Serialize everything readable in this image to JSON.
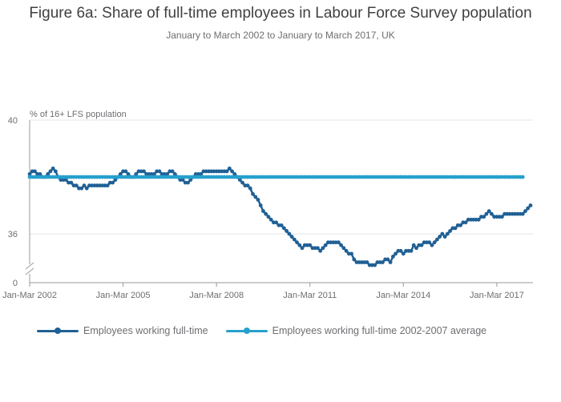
{
  "colors": {
    "primary": "#206095",
    "average": "#27a0cc",
    "text": "#414042",
    "grid": "#e6e6e6"
  },
  "chart_data": {
    "type": "line",
    "title": "Figure 6a: Share of full-time employees in Labour Force Survey population",
    "subtitle": "January to March 2002 to January to March 2017, UK",
    "ylabel": "% of 16+ LFS population",
    "xlabel": "",
    "y_axis_break": true,
    "y_ticks": [
      "40",
      "36",
      "0"
    ],
    "x_tick_labels": [
      "Jan-Mar 2002",
      "Jan-Mar 2005",
      "Jan-Mar 2008",
      "Jan-Mar 2011",
      "Jan-Mar 2014",
      "Jan-Mar 2017"
    ],
    "x_start_year": 2002,
    "months_step": 1,
    "grid": true,
    "legend_position": "bottom",
    "series": [
      {
        "name": "Employees working full-time",
        "values": [
          38.1,
          38.2,
          38.2,
          38.1,
          38.1,
          38.0,
          38.0,
          38.1,
          38.2,
          38.3,
          38.2,
          38.0,
          37.9,
          37.9,
          37.9,
          37.8,
          37.8,
          37.7,
          37.7,
          37.6,
          37.6,
          37.7,
          37.6,
          37.7,
          37.7,
          37.7,
          37.7,
          37.7,
          37.7,
          37.7,
          37.7,
          37.8,
          37.8,
          37.9,
          38.0,
          38.1,
          38.2,
          38.2,
          38.1,
          38.0,
          38.0,
          38.1,
          38.2,
          38.2,
          38.2,
          38.1,
          38.1,
          38.1,
          38.1,
          38.2,
          38.2,
          38.1,
          38.1,
          38.1,
          38.2,
          38.2,
          38.1,
          38.0,
          37.9,
          37.9,
          37.8,
          37.8,
          37.9,
          38.0,
          38.1,
          38.1,
          38.1,
          38.2,
          38.2,
          38.2,
          38.2,
          38.2,
          38.2,
          38.2,
          38.2,
          38.2,
          38.2,
          38.3,
          38.2,
          38.1,
          38.0,
          37.9,
          37.8,
          37.7,
          37.7,
          37.6,
          37.4,
          37.3,
          37.2,
          37.0,
          36.8,
          36.7,
          36.6,
          36.5,
          36.4,
          36.4,
          36.3,
          36.3,
          36.2,
          36.1,
          36.0,
          35.9,
          35.8,
          35.7,
          35.6,
          35.5,
          35.6,
          35.6,
          35.6,
          35.5,
          35.5,
          35.5,
          35.4,
          35.5,
          35.6,
          35.7,
          35.7,
          35.7,
          35.7,
          35.7,
          35.6,
          35.5,
          35.4,
          35.3,
          35.3,
          35.1,
          35.0,
          35.0,
          35.0,
          35.0,
          35.0,
          34.9,
          34.9,
          34.9,
          35.0,
          35.0,
          35.0,
          35.1,
          35.1,
          35.0,
          35.2,
          35.3,
          35.4,
          35.4,
          35.3,
          35.4,
          35.4,
          35.4,
          35.6,
          35.5,
          35.6,
          35.6,
          35.7,
          35.7,
          35.7,
          35.6,
          35.7,
          35.8,
          35.9,
          36.0,
          35.9,
          36.0,
          36.1,
          36.2,
          36.2,
          36.3,
          36.3,
          36.4,
          36.4,
          36.5,
          36.5,
          36.5,
          36.5,
          36.5,
          36.6,
          36.6,
          36.7,
          36.8,
          36.7,
          36.6,
          36.6,
          36.6,
          36.6,
          36.7,
          36.7,
          36.7,
          36.7,
          36.7,
          36.7,
          36.7,
          36.7,
          36.8,
          36.9,
          37.0
        ]
      },
      {
        "name": "Employees working full-time 2002-2007 average",
        "values": [
          38.0,
          38.0,
          38.0,
          38.0,
          38.0,
          38.0,
          38.0,
          38.0,
          38.0,
          38.0,
          38.0,
          38.0,
          38.0,
          38.0,
          38.0,
          38.0,
          38.0,
          38.0,
          38.0,
          38.0,
          38.0,
          38.0,
          38.0,
          38.0,
          38.0,
          38.0,
          38.0,
          38.0,
          38.0,
          38.0,
          38.0,
          38.0,
          38.0,
          38.0,
          38.0,
          38.0,
          38.0,
          38.0,
          38.0,
          38.0,
          38.0,
          38.0,
          38.0,
          38.0,
          38.0,
          38.0,
          38.0,
          38.0,
          38.0,
          38.0,
          38.0,
          38.0,
          38.0,
          38.0,
          38.0,
          38.0,
          38.0,
          38.0,
          38.0,
          38.0,
          38.0,
          38.0,
          38.0,
          38.0,
          38.0,
          38.0,
          38.0,
          38.0,
          38.0,
          38.0,
          38.0,
          38.0,
          38.0,
          38.0,
          38.0,
          38.0,
          38.0,
          38.0,
          38.0,
          38.0,
          38.0,
          38.0,
          38.0,
          38.0,
          38.0,
          38.0,
          38.0,
          38.0,
          38.0,
          38.0,
          38.0,
          38.0,
          38.0,
          38.0,
          38.0,
          38.0,
          38.0,
          38.0,
          38.0,
          38.0,
          38.0,
          38.0,
          38.0,
          38.0,
          38.0,
          38.0,
          38.0,
          38.0,
          38.0,
          38.0,
          38.0,
          38.0,
          38.0,
          38.0,
          38.0,
          38.0,
          38.0,
          38.0,
          38.0,
          38.0,
          38.0,
          38.0,
          38.0,
          38.0,
          38.0,
          38.0,
          38.0,
          38.0,
          38.0,
          38.0,
          38.0,
          38.0,
          38.0,
          38.0,
          38.0,
          38.0,
          38.0,
          38.0,
          38.0,
          38.0,
          38.0,
          38.0,
          38.0,
          38.0,
          38.0,
          38.0,
          38.0,
          38.0,
          38.0,
          38.0,
          38.0,
          38.0,
          38.0,
          38.0,
          38.0,
          38.0,
          38.0,
          38.0,
          38.0,
          38.0,
          38.0,
          38.0,
          38.0,
          38.0,
          38.0,
          38.0,
          38.0,
          38.0,
          38.0,
          38.0,
          38.0,
          38.0,
          38.0,
          38.0,
          38.0,
          38.0,
          38.0,
          38.0,
          38.0,
          38.0,
          38.0,
          38.0,
          38.0,
          38.0,
          38.0,
          38.0,
          38.0,
          38.0,
          38.0,
          38.0,
          38.0
        ]
      }
    ]
  }
}
